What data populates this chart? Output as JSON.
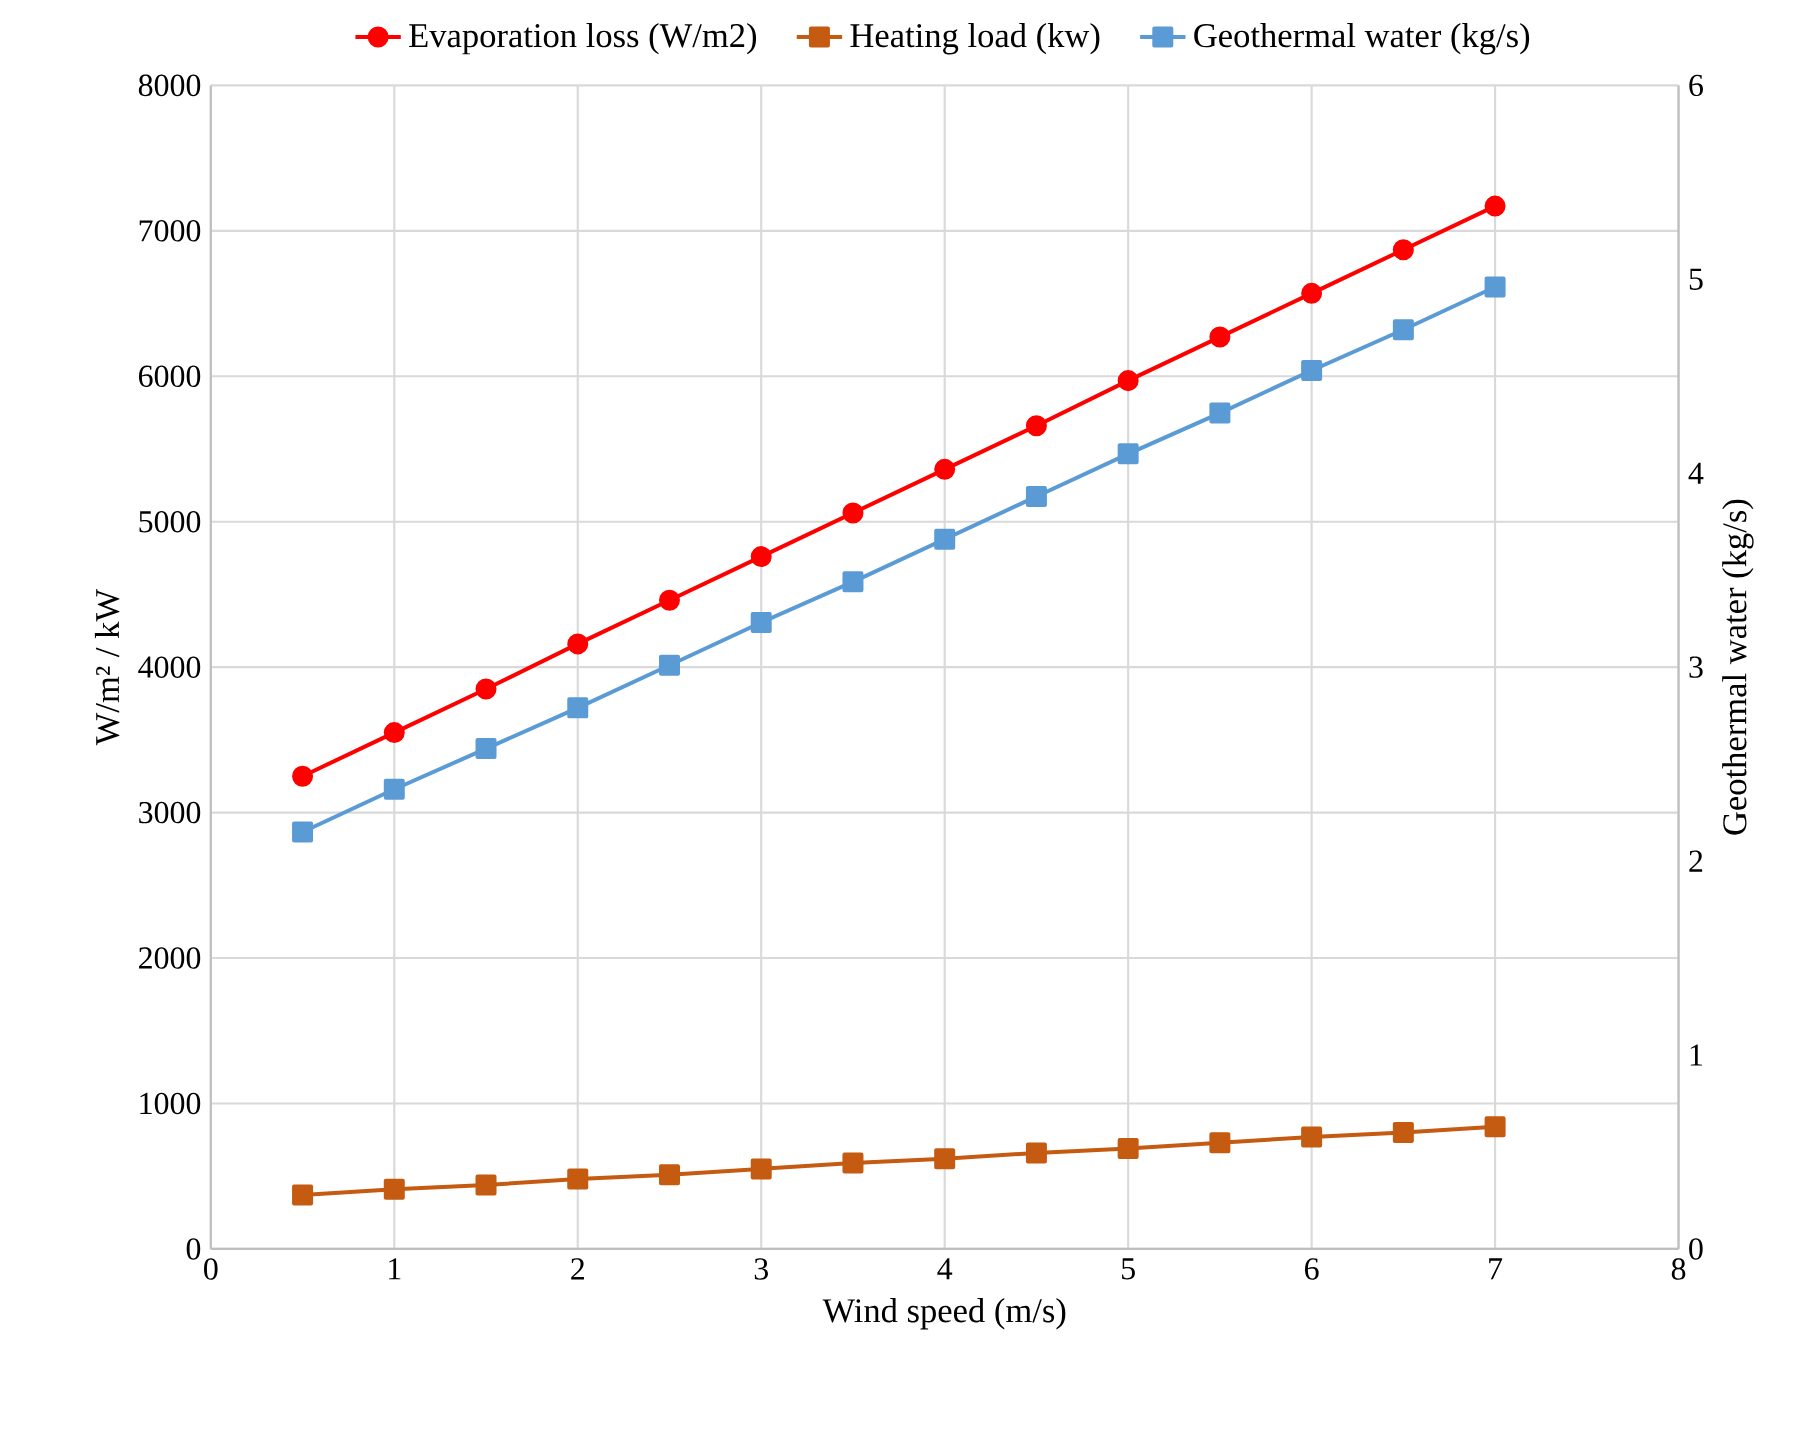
{
  "chart_data": {
    "type": "line",
    "xlabel": "Wind speed (m/s)",
    "ylabel": "W/m² / kW",
    "y2label": "Geothermal water (kg/s)",
    "x": [
      0.5,
      1,
      1.5,
      2,
      2.5,
      3,
      3.5,
      4,
      4.5,
      5,
      5.5,
      6,
      6.5,
      7
    ],
    "xlim": [
      0,
      8
    ],
    "xticks": [
      0,
      1,
      2,
      3,
      4,
      5,
      6,
      7,
      8
    ],
    "ylim": [
      0,
      8000
    ],
    "yticks": [
      0,
      1000,
      2000,
      3000,
      4000,
      5000,
      6000,
      7000,
      8000
    ],
    "y2lim": [
      0,
      6
    ],
    "y2ticks": [
      0,
      1,
      2,
      3,
      4,
      5,
      6
    ],
    "grid": true,
    "legend": "top",
    "line_style": "solid",
    "series": [
      {
        "name": "Evaporation loss (W/m2)",
        "color": "#ff0000",
        "marker": "circle",
        "values": [
          3250,
          3550,
          3850,
          4160,
          4460,
          4760,
          5060,
          5360,
          5660,
          5970,
          6270,
          6570,
          6870,
          7170
        ]
      },
      {
        "name": "Heating load (kw)",
        "color": "#c55a11",
        "marker": "square",
        "values": [
          370,
          410,
          440,
          480,
          510,
          550,
          590,
          620,
          660,
          690,
          730,
          770,
          800,
          840
        ]
      },
      {
        "name": "Geothermal water (kg/s)",
        "color": "#5b9bd5",
        "marker": "square",
        "axis": "y2",
        "values": [
          2.15,
          2.37,
          2.58,
          2.79,
          3.01,
          3.23,
          3.44,
          3.66,
          3.88,
          4.1,
          4.31,
          4.53,
          4.74,
          4.96
        ]
      }
    ]
  }
}
